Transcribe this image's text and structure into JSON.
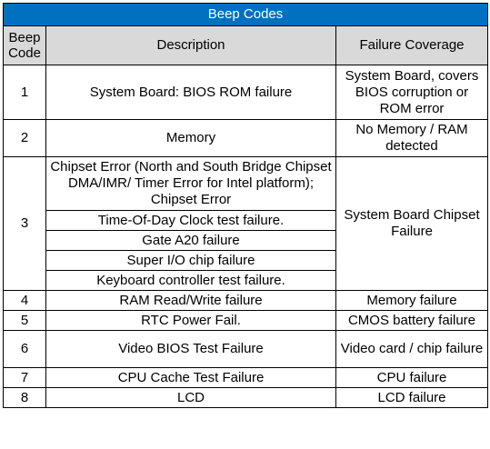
{
  "title": "Beep Codes",
  "headers": {
    "code_line1": "Beep",
    "code_line2": "Code",
    "description": "Description",
    "coverage": "Failure Coverage"
  },
  "rows": [
    {
      "code": "1",
      "description": "System Board: BIOS ROM failure",
      "coverage": "System Board, covers BIOS corruption or ROM error"
    },
    {
      "code": "2",
      "description": "Memory",
      "coverage": "No Memory / RAM detected"
    },
    {
      "code": "3",
      "descriptions": [
        "Chipset Error (North and South Bridge Chipset DMA/IMR/ Timer Error for Intel platform); Chipset Error",
        "Time-Of-Day Clock test failure.",
        "Gate A20 failure",
        "Super I/O chip failure",
        "Keyboard controller test failure."
      ],
      "coverage": "System Board Chipset Failure"
    },
    {
      "code": "4",
      "description": "RAM Read/Write failure",
      "coverage": "Memory failure"
    },
    {
      "code": "5",
      "description": "RTC Power Fail.",
      "coverage": "CMOS battery failure"
    },
    {
      "code": "6",
      "description": "Video BIOS Test Failure",
      "coverage": "Video card / chip failure"
    },
    {
      "code": "7",
      "description": "CPU Cache Test Failure",
      "coverage": "CPU failure"
    },
    {
      "code": "8",
      "description": "LCD",
      "coverage": "LCD failure"
    }
  ],
  "colors": {
    "title_background": "#0070c0",
    "header_background": "#d9d9d9",
    "border": "#000000"
  }
}
